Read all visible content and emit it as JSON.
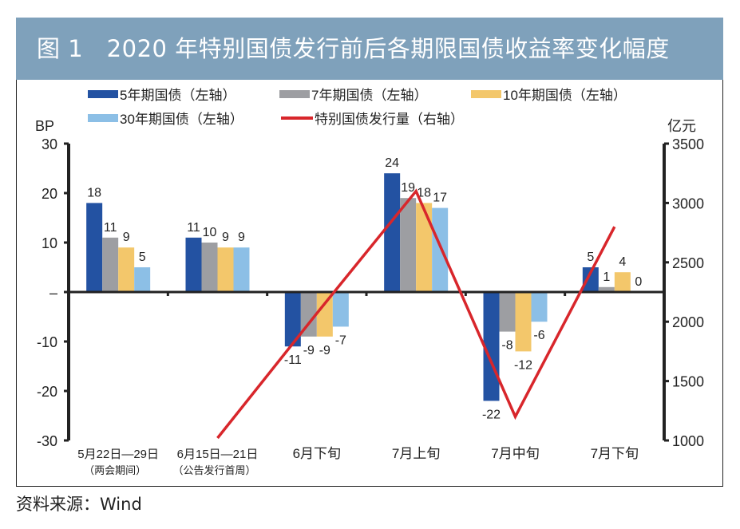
{
  "title": "图 1　2020 年特别国债发行前后各期限国债收益率变化幅度",
  "source": "资料来源：Wind",
  "chart_data": {
    "type": "bar+line",
    "title": "图 1　2020 年特别国债发行前后各期限国债收益率变化幅度",
    "categories": [
      "5月22日—29日",
      "6月15日—21日",
      "6月下旬",
      "7月上旬",
      "7月中旬",
      "7月下旬"
    ],
    "category_sublabels": [
      "（两会期间）",
      "（公告发行首周）",
      "",
      "",
      "",
      ""
    ],
    "ylabel_left": "BP",
    "ylabel_right": "亿元",
    "ylim_left": [
      -30,
      30
    ],
    "yticks_left": [
      30,
      20,
      10,
      0,
      -10,
      -20,
      -30
    ],
    "ytick_labels_left": [
      "30",
      "20",
      "10",
      "–",
      "-10",
      "-20",
      "-30"
    ],
    "ylim_right": [
      1000,
      3500
    ],
    "yticks_right": [
      3500,
      3000,
      2500,
      2000,
      1500,
      1000
    ],
    "grid": false,
    "legend_position": "top",
    "series": [
      {
        "name": "5年期国债（左轴）",
        "type": "bar",
        "axis": "left",
        "color": "#2352a2",
        "values": [
          18,
          11,
          -11,
          24,
          -22,
          5
        ]
      },
      {
        "name": "7年期国债（左轴）",
        "type": "bar",
        "axis": "left",
        "color": "#9d9ea2",
        "values": [
          11,
          10,
          -9,
          19,
          -8,
          1
        ]
      },
      {
        "name": "10年期国债（左轴）",
        "type": "bar",
        "axis": "left",
        "color": "#f3c76b",
        "values": [
          9,
          9,
          -9,
          18,
          -12,
          4
        ]
      },
      {
        "name": "30年期国债（左轴）",
        "type": "bar",
        "axis": "left",
        "color": "#8cbfe6",
        "values": [
          5,
          9,
          -7,
          17,
          -6,
          0
        ]
      },
      {
        "name": "特别国债发行量（右轴）",
        "type": "line",
        "axis": "right",
        "color": "#d8262b",
        "values": [
          null,
          1020,
          2070,
          3100,
          1200,
          2800
        ]
      }
    ]
  }
}
